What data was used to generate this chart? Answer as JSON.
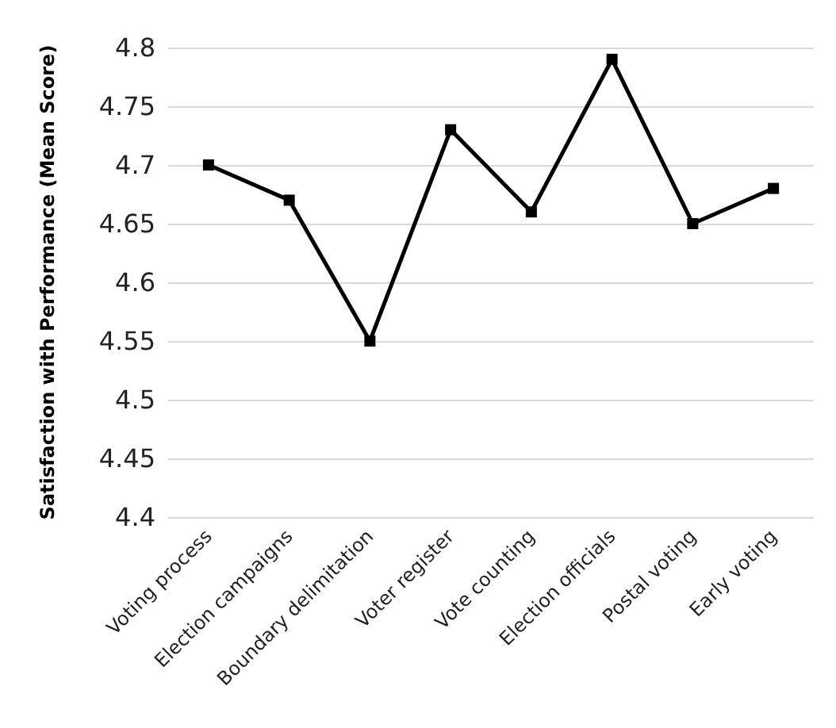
{
  "chart_data": {
    "type": "line",
    "ylabel": "Satisfaction with Performance (Mean Score)",
    "categories": [
      "Voting process",
      "Election campaigns",
      "Boundary delimitation",
      "Voter register",
      "Vote counting",
      "Election officials",
      "Postal voting",
      "Early voting"
    ],
    "series": [
      {
        "color": "#000000",
        "values": [
          4.7,
          4.67,
          4.55,
          4.73,
          4.66,
          4.79,
          4.65,
          4.68
        ]
      }
    ],
    "ylim": [
      4.4,
      4.8
    ],
    "yticks": [
      4.4,
      4.45,
      4.5,
      4.55,
      4.6,
      4.65,
      4.7,
      4.75,
      4.8
    ],
    "grid": "y",
    "marker": "square",
    "line_style": "solid"
  }
}
